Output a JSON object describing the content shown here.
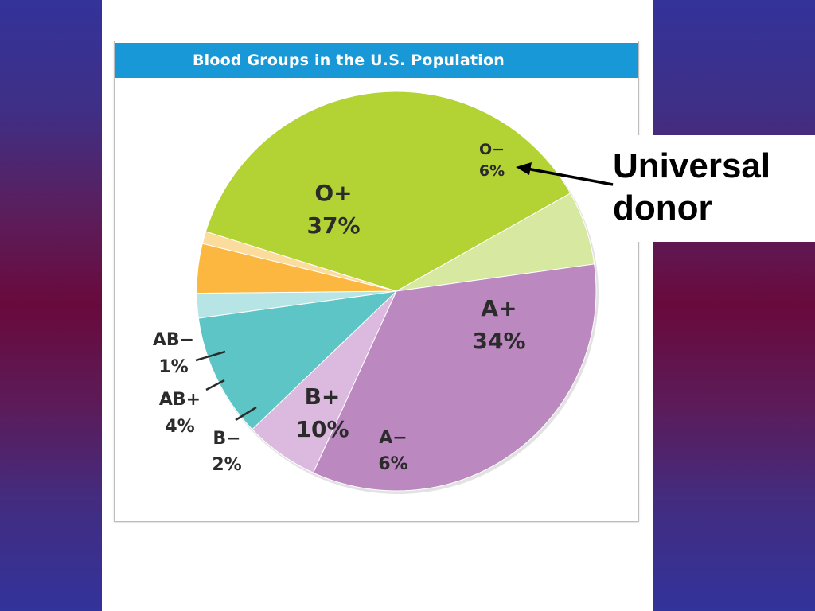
{
  "slide": {
    "callout_line1": "Universal",
    "callout_line2": "donor",
    "colors": {
      "background_top": "#33339a",
      "background_mid": "#690a3c",
      "panel": "#ffffff",
      "title_bar": "#1898d6"
    }
  },
  "chart_data": {
    "type": "pie",
    "title": "Blood Groups in the U.S. Population",
    "slices": [
      {
        "label": "O−",
        "value": 6,
        "value_text": "6%",
        "color": "#d7e8a0"
      },
      {
        "label": "A+",
        "value": 34,
        "value_text": "34%",
        "color": "#bb88c0"
      },
      {
        "label": "A−",
        "value": 6,
        "value_text": "6%",
        "color": "#dcbadf"
      },
      {
        "label": "B+",
        "value": 10,
        "value_text": "10%",
        "color": "#5ec5c6"
      },
      {
        "label": "B−",
        "value": 2,
        "value_text": "2%",
        "color": "#b7e4e4"
      },
      {
        "label": "AB+",
        "value": 4,
        "value_text": "4%",
        "color": "#fbb73f"
      },
      {
        "label": "AB−",
        "value": 1,
        "value_text": "1%",
        "color": "#fbdc9c"
      },
      {
        "label": "O+",
        "value": 37,
        "value_text": "37%",
        "color": "#b3d234"
      }
    ],
    "annotation": {
      "text": "Universal donor",
      "points_to": "O−"
    },
    "legend": "none"
  }
}
